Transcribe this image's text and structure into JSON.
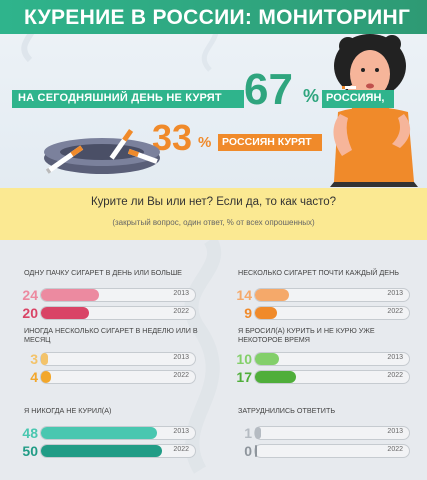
{
  "header": {
    "title": "КУРЕНИЕ В РОССИИ: МОНИТОРИНГ"
  },
  "hero": {
    "line1_prefix": "НА СЕГОДНЯШНИЙ ДЕНЬ НЕ КУРЯТ",
    "non_smokers_value": "67",
    "percent_sign": "%",
    "line1_suffix": "РОССИЯН,",
    "smokers_value": "33",
    "line2_suffix": "РОССИЯН КУРЯТ"
  },
  "question": {
    "text": "Курите ли Вы или нет? Если да, то как часто?",
    "note": "(закрытый вопрос, один ответ, % от всех опрошенных)"
  },
  "colors": {
    "green": "#2fb48c",
    "orange": "#f08a2a",
    "pink_light": "#ec8aa0",
    "pink_dark": "#d94466",
    "orange_light": "#f5a96a",
    "yellow_light": "#f3c36a",
    "yellow_dark": "#f2a72c",
    "green_light": "#83cf6a",
    "green_dark": "#4fae3a",
    "teal_light": "#49c7b0",
    "teal_dark": "#219c86",
    "grey_light": "#b5bbc2",
    "grey_dark": "#8e959c"
  },
  "chart_data": {
    "type": "bar",
    "unit": "%",
    "categories": [
      "ОДНУ ПАЧКУ СИГАРЕТ В ДЕНЬ ИЛИ БОЛЬШЕ",
      "НЕСКОЛЬКО СИГАРЕТ ПОЧТИ КАЖДЫЙ ДЕНЬ",
      "ИНОГДА НЕСКОЛЬКО СИГАРЕТ В НЕДЕЛЮ ИЛИ В МЕСЯЦ",
      "Я БРОСИЛ(А) КУРИТЬ И НЕ КУРЮ УЖЕ НЕКОТОРОЕ ВРЕМЯ",
      "Я НИКОГДА НЕ КУРИЛ(А)",
      "ЗАТРУДНИЛИСЬ ОТВЕТИТЬ"
    ],
    "series": [
      {
        "name": "2013",
        "values": [
          24,
          14,
          3,
          10,
          48,
          1
        ]
      },
      {
        "name": "2022",
        "values": [
          20,
          9,
          4,
          17,
          50,
          0
        ]
      }
    ],
    "ylim": [
      0,
      100
    ]
  },
  "items": [
    {
      "label": "ОДНУ ПАЧКУ СИГАРЕТ В ДЕНЬ ИЛИ БОЛЬШЕ",
      "v2013": "24",
      "v2022": "20",
      "c1": "#ec8aa0",
      "c2": "#d94466"
    },
    {
      "label": "НЕСКОЛЬКО СИГАРЕТ ПОЧТИ КАЖДЫЙ ДЕНЬ",
      "v2013": "14",
      "v2022": "9",
      "c1": "#f5a96a",
      "c2": "#f08a2a"
    },
    {
      "label": "ИНОГДА НЕСКОЛЬКО СИГАРЕТ В НЕДЕЛЮ ИЛИ В МЕСЯЦ",
      "v2013": "3",
      "v2022": "4",
      "c1": "#f3c36a",
      "c2": "#f2a72c"
    },
    {
      "label": "Я БРОСИЛ(А) КУРИТЬ И НЕ КУРЮ УЖЕ НЕКОТОРОЕ ВРЕМЯ",
      "v2013": "10",
      "v2022": "17",
      "c1": "#83cf6a",
      "c2": "#4fae3a"
    },
    {
      "label": "Я НИКОГДА НЕ КУРИЛ(А)",
      "v2013": "48",
      "v2022": "50",
      "c1": "#49c7b0",
      "c2": "#219c86"
    },
    {
      "label": "ЗАТРУДНИЛИСЬ ОТВЕТИТЬ",
      "v2013": "1",
      "v2022": "0",
      "c1": "#b5bbc2",
      "c2": "#8e959c"
    }
  ],
  "years": {
    "first": "2013",
    "second": "2022"
  }
}
